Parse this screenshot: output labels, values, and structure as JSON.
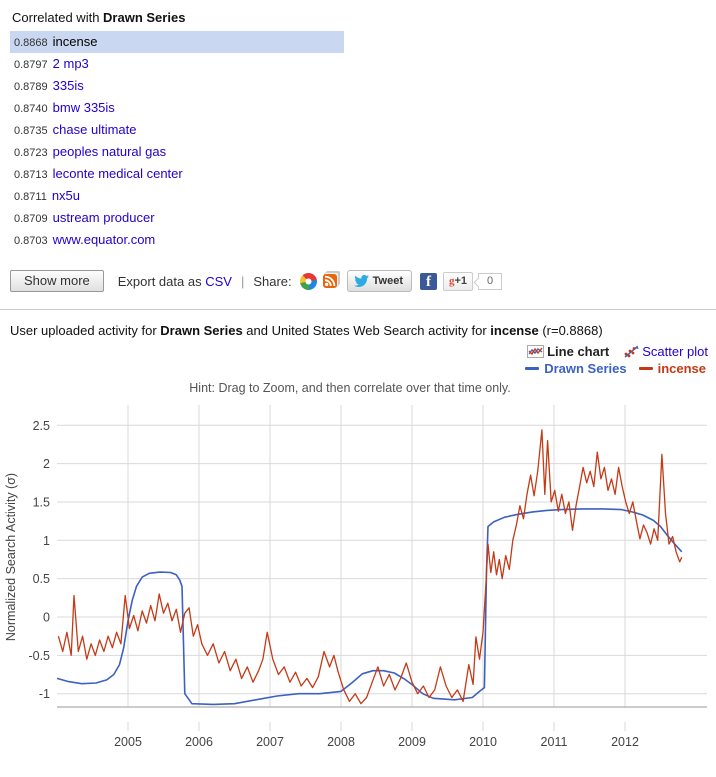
{
  "results": {
    "heading_prefix": "Correlated with ",
    "heading_series": "Drawn Series",
    "items": [
      {
        "value": "0.8868",
        "term": "incense",
        "selected": true
      },
      {
        "value": "0.8797",
        "term": "2 mp3",
        "selected": false
      },
      {
        "value": "0.8789",
        "term": "335is",
        "selected": false
      },
      {
        "value": "0.8740",
        "term": "bmw 335is",
        "selected": false
      },
      {
        "value": "0.8735",
        "term": "chase ultimate",
        "selected": false
      },
      {
        "value": "0.8723",
        "term": "peoples natural gas",
        "selected": false
      },
      {
        "value": "0.8713",
        "term": "leconte medical center",
        "selected": false
      },
      {
        "value": "0.8711",
        "term": "nx5u",
        "selected": false
      },
      {
        "value": "0.8709",
        "term": "ustream producer",
        "selected": false
      },
      {
        "value": "0.8703",
        "term": "www.equator.com",
        "selected": false
      }
    ],
    "show_more_label": "Show more",
    "export_prefix": "Export data as ",
    "export_link": "CSV",
    "separator": "|",
    "share_label": "Share:",
    "tweet_label": "Tweet",
    "plus_g": "g",
    "plus_one": "+1",
    "plus_count": "0"
  },
  "chart_section": {
    "title_prefix": "User uploaded activity for ",
    "title_series": "Drawn Series",
    "title_mid": " and United States Web Search activity for ",
    "title_term": "incense",
    "title_suffix": " (r=0.8868)",
    "toggle_line": "Line chart",
    "toggle_scatter": "Scatter plot",
    "legend": [
      {
        "label": "Drawn Series",
        "color": "#3c61c2"
      },
      {
        "label": "incense",
        "color": "#c43a17"
      }
    ],
    "hint": "Hint: Drag to Zoom, and then correlate over that time only."
  },
  "chart_data": {
    "type": "line",
    "title": "",
    "xlabel": "",
    "ylabel": "Normalized Search Activity (σ)",
    "xlim": [
      2004.0,
      2013.15
    ],
    "ylim": [
      -1.25,
      2.85
    ],
    "x_ticks": [
      2005,
      2006,
      2007,
      2008,
      2009,
      2010,
      2011,
      2012
    ],
    "y_ticks": [
      2.5,
      2,
      1.5,
      1,
      0.5,
      0,
      -0.5,
      -1
    ],
    "grid": true,
    "legend_position": "top-right",
    "series": [
      {
        "name": "Drawn Series",
        "color": "#3c61c2",
        "x": [
          2004.0,
          2004.15,
          2004.35,
          2004.55,
          2004.7,
          2004.8,
          2004.88,
          2004.94,
          2005.0,
          2005.06,
          2005.12,
          2005.2,
          2005.3,
          2005.45,
          2005.6,
          2005.68,
          2005.73,
          2005.76,
          2005.78,
          2005.8,
          2005.9,
          2006.2,
          2006.5,
          2006.8,
          2007.1,
          2007.4,
          2007.7,
          2008.0,
          2008.15,
          2008.3,
          2008.45,
          2008.6,
          2008.75,
          2008.88,
          2009.0,
          2009.15,
          2009.3,
          2009.6,
          2009.85,
          2009.95,
          2010.02,
          2010.05,
          2010.07,
          2010.15,
          2010.3,
          2010.5,
          2010.7,
          2010.9,
          2011.1,
          2011.4,
          2011.7,
          2011.95,
          2012.1,
          2012.25,
          2012.4,
          2012.5,
          2012.6,
          2012.7,
          2012.8
        ],
        "y": [
          -0.8,
          -0.84,
          -0.87,
          -0.86,
          -0.82,
          -0.75,
          -0.62,
          -0.4,
          -0.05,
          0.22,
          0.4,
          0.52,
          0.57,
          0.585,
          0.58,
          0.55,
          0.48,
          0.4,
          -0.3,
          -1.0,
          -1.13,
          -1.14,
          -1.13,
          -1.08,
          -1.03,
          -1.0,
          -1.0,
          -0.97,
          -0.86,
          -0.74,
          -0.7,
          -0.7,
          -0.73,
          -0.8,
          -0.88,
          -1.0,
          -1.06,
          -1.08,
          -1.05,
          -0.97,
          -0.92,
          0.6,
          1.18,
          1.24,
          1.3,
          1.34,
          1.37,
          1.39,
          1.4,
          1.41,
          1.41,
          1.4,
          1.37,
          1.33,
          1.26,
          1.18,
          1.06,
          0.95,
          0.85
        ]
      },
      {
        "name": "incense",
        "color": "#c43a17",
        "x": [
          2004.02,
          2004.08,
          2004.14,
          2004.2,
          2004.24,
          2004.3,
          2004.36,
          2004.42,
          2004.48,
          2004.54,
          2004.6,
          2004.66,
          2004.72,
          2004.78,
          2004.84,
          2004.9,
          2004.96,
          2005.02,
          2005.08,
          2005.14,
          2005.2,
          2005.26,
          2005.32,
          2005.38,
          2005.44,
          2005.5,
          2005.56,
          2005.62,
          2005.68,
          2005.74,
          2005.8,
          2005.86,
          2005.92,
          2005.98,
          2006.04,
          2006.12,
          2006.2,
          2006.28,
          2006.36,
          2006.44,
          2006.52,
          2006.6,
          2006.68,
          2006.76,
          2006.84,
          2006.9,
          2006.96,
          2007.04,
          2007.12,
          2007.2,
          2007.28,
          2007.36,
          2007.44,
          2007.52,
          2007.6,
          2007.68,
          2007.76,
          2007.84,
          2007.9,
          2007.96,
          2008.04,
          2008.12,
          2008.2,
          2008.28,
          2008.36,
          2008.44,
          2008.52,
          2008.6,
          2008.68,
          2008.76,
          2008.84,
          2008.92,
          2009.0,
          2009.08,
          2009.16,
          2009.24,
          2009.32,
          2009.4,
          2009.48,
          2009.56,
          2009.64,
          2009.72,
          2009.8,
          2009.86,
          2009.9,
          2009.95,
          2010.0,
          2010.04,
          2010.07,
          2010.11,
          2010.15,
          2010.19,
          2010.23,
          2010.27,
          2010.32,
          2010.37,
          2010.42,
          2010.47,
          2010.52,
          2010.57,
          2010.62,
          2010.67,
          2010.72,
          2010.77,
          2010.83,
          2010.87,
          2010.91,
          2010.96,
          2011.01,
          2011.06,
          2011.11,
          2011.16,
          2011.21,
          2011.26,
          2011.31,
          2011.36,
          2011.41,
          2011.46,
          2011.51,
          2011.56,
          2011.61,
          2011.66,
          2011.71,
          2011.76,
          2011.81,
          2011.86,
          2011.91,
          2011.96,
          2012.01,
          2012.06,
          2012.11,
          2012.16,
          2012.21,
          2012.26,
          2012.31,
          2012.36,
          2012.41,
          2012.46,
          2012.52,
          2012.57,
          2012.62,
          2012.67,
          2012.72,
          2012.77,
          2012.8
        ],
        "y": [
          -0.25,
          -0.45,
          -0.2,
          -0.5,
          0.28,
          -0.45,
          -0.25,
          -0.55,
          -0.35,
          -0.5,
          -0.3,
          -0.45,
          -0.25,
          -0.4,
          -0.2,
          -0.35,
          0.28,
          -0.15,
          0.02,
          -0.18,
          0.08,
          -0.08,
          0.15,
          -0.05,
          0.3,
          0.05,
          0.18,
          -0.05,
          0.1,
          -0.2,
          0.05,
          0.12,
          -0.25,
          -0.1,
          -0.35,
          -0.5,
          -0.35,
          -0.6,
          -0.45,
          -0.7,
          -0.55,
          -0.8,
          -0.65,
          -0.85,
          -0.7,
          -0.55,
          -0.2,
          -0.55,
          -0.75,
          -0.65,
          -0.85,
          -0.72,
          -0.9,
          -0.8,
          -0.92,
          -0.78,
          -0.45,
          -0.65,
          -0.5,
          -0.72,
          -0.95,
          -1.1,
          -1.0,
          -1.13,
          -1.05,
          -0.85,
          -0.65,
          -0.9,
          -0.75,
          -0.95,
          -0.8,
          -0.6,
          -0.85,
          -1.0,
          -0.9,
          -1.05,
          -0.95,
          -0.65,
          -0.9,
          -1.05,
          -0.95,
          -1.1,
          -0.62,
          -0.88,
          -0.26,
          -0.55,
          -0.2,
          0.4,
          0.95,
          0.58,
          0.85,
          0.55,
          0.75,
          0.5,
          0.8,
          0.62,
          1.0,
          1.2,
          1.45,
          1.28,
          1.6,
          1.85,
          1.58,
          1.9,
          2.44,
          1.6,
          2.3,
          1.5,
          1.65,
          1.38,
          1.6,
          1.35,
          1.5,
          1.13,
          1.45,
          1.7,
          1.95,
          1.75,
          1.9,
          1.7,
          2.15,
          1.8,
          1.95,
          1.65,
          1.8,
          1.6,
          1.95,
          1.7,
          1.5,
          1.35,
          1.5,
          1.25,
          1.02,
          1.2,
          1.1,
          0.95,
          1.15,
          1.0,
          2.12,
          1.35,
          0.95,
          1.05,
          0.85,
          0.72,
          0.78
        ]
      }
    ]
  }
}
